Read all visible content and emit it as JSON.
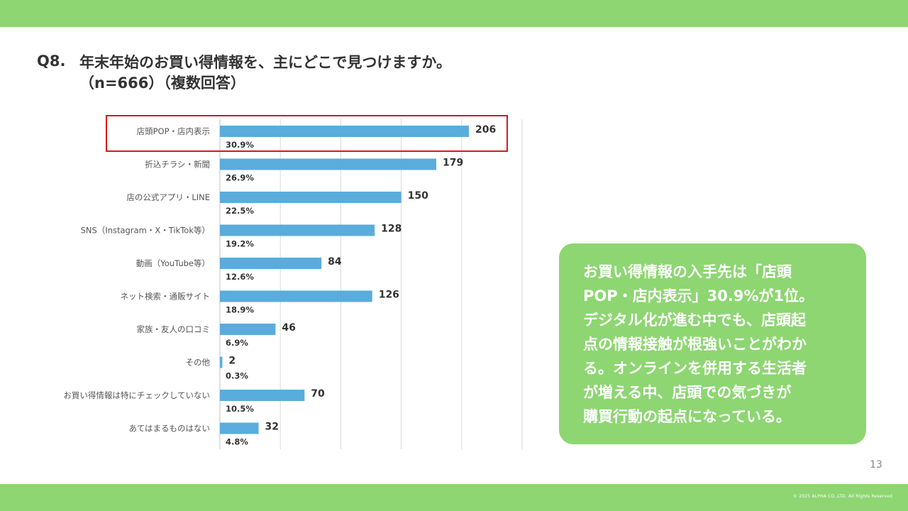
{
  "header": {
    "question_number": "Q8.",
    "title_line1": "年末年始のお買い得情報を、主にどこで見つけますか。",
    "title_line2": "（n=666）（複数回答）"
  },
  "chart_data": {
    "type": "bar",
    "orientation": "horizontal",
    "categories": [
      "店頭POP・店内表示",
      "折込チラシ・新聞",
      "店の公式アプリ・LINE",
      "SNS（Instagram・X・TikTok等）",
      "動画（YouTube等）",
      "ネット検索・通販サイト",
      "家族・友人の口コミ",
      "その他",
      "お買い得情報は特にチェックしていない",
      "あてはまるものはない"
    ],
    "values": [
      206,
      179,
      150,
      128,
      84,
      126,
      46,
      2,
      70,
      32
    ],
    "value_labels": [
      "206",
      "179",
      "150",
      "128",
      "84",
      "126",
      "46",
      "2",
      "70",
      "32"
    ],
    "percent_labels": [
      "30.9%",
      "26.9%",
      "22.5%",
      "19.2%",
      "12.6%",
      "18.9%",
      "6.9%",
      "0.3%",
      "10.5%",
      "4.8%"
    ],
    "xlim": [
      0,
      250
    ],
    "grid": true,
    "bar_color": "#5aacdd",
    "highlighted_category_index": 0,
    "highlight_color": "#d01c1c"
  },
  "summary": {
    "lines": [
      "お買い得情報の入手先は「店頭",
      "POP・店内表示」30.9%が1位。",
      "デジタル化が進む中でも、店頭起",
      "点の情報接触が根強いことがわか",
      "る。オンラインを併用する生活者",
      "が増える中、店頭での気づきが",
      "購買行動の起点になっている。"
    ]
  },
  "footer": {
    "page_number": "13",
    "copyright": "© 2025 ALPHA CO.,LTD. All Rights Reserved"
  },
  "colors": {
    "band": "#8dd672",
    "summary_bg": "#8dd672",
    "text": "#333333"
  }
}
